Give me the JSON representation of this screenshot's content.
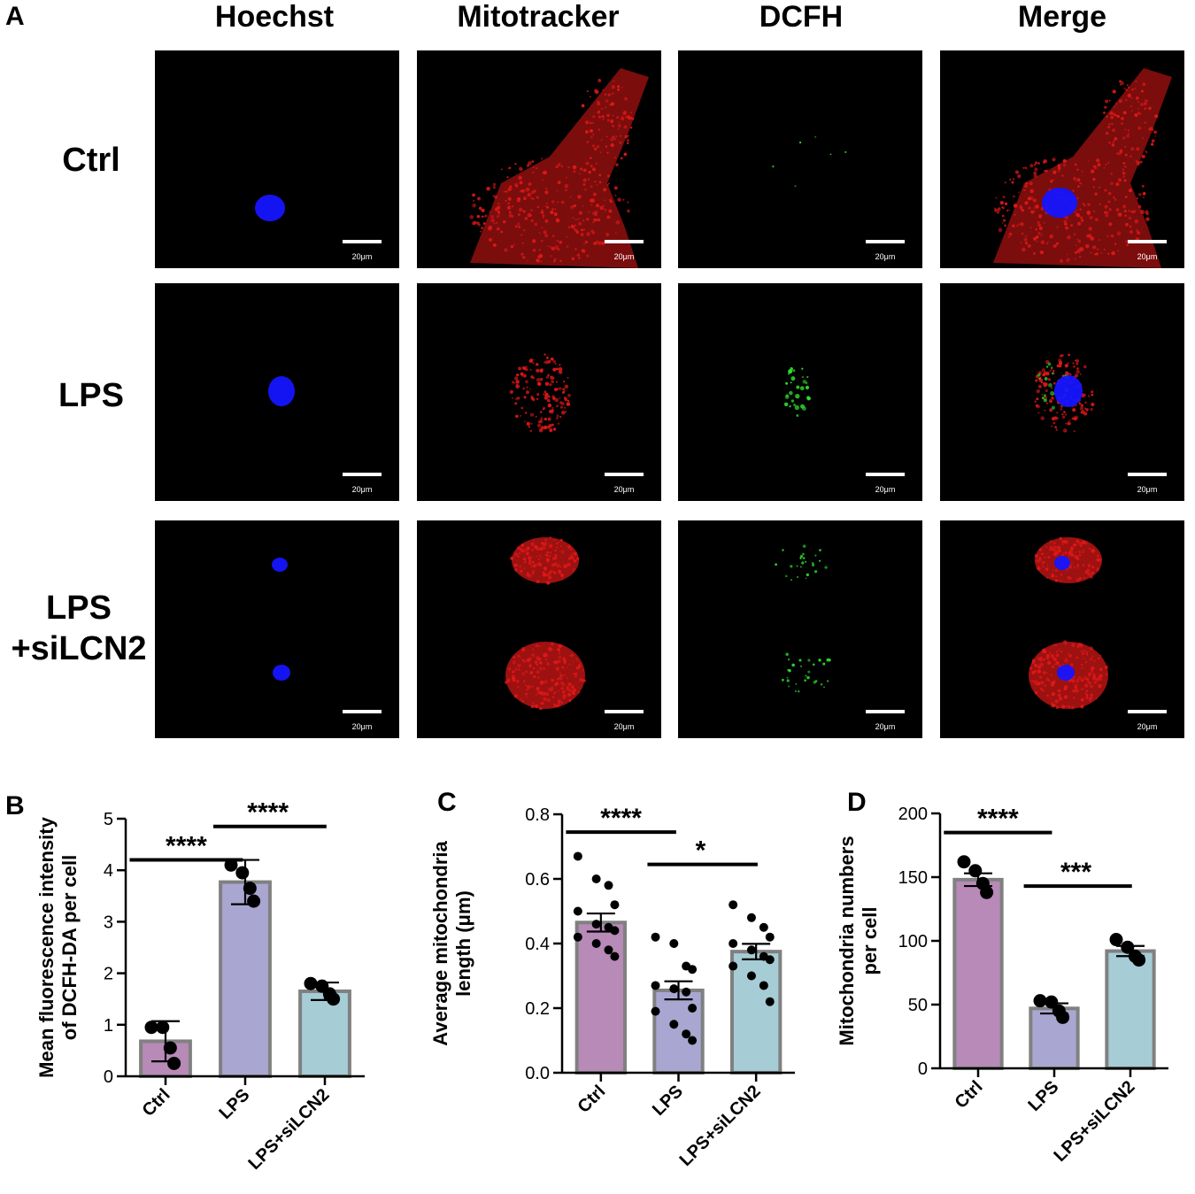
{
  "panel_a": {
    "letter": "A",
    "columns": [
      "Hoechst",
      "Mitotracker",
      "DCFH",
      "Merge"
    ],
    "rows": [
      {
        "label_lines": [
          "Ctrl"
        ],
        "cells": [
          "hoechst",
          "mito",
          "dcfh",
          "merge"
        ]
      },
      {
        "label_lines": [
          "LPS"
        ],
        "cells": [
          "hoechst",
          "mito",
          "dcfh",
          "merge"
        ]
      },
      {
        "label_lines": [
          "LPS",
          "+siLCN2"
        ],
        "cells": [
          "hoechst",
          "mito",
          "dcfh",
          "merge"
        ]
      }
    ],
    "scale_bar_label": "20μm",
    "colors": {
      "nucleus": "#1515ff",
      "mitochondria": "#e01818",
      "ros": "#2ee02e"
    }
  },
  "chart_data": [
    {
      "panel": "B",
      "type": "bar",
      "categories": [
        "Ctrl",
        "LPS",
        "LPS+siLCN2"
      ],
      "values": [
        0.68,
        3.77,
        1.65
      ],
      "errors": [
        0.39,
        0.43,
        0.17
      ],
      "points": [
        [
          0.95,
          0.95,
          0.55,
          0.25
        ],
        [
          4.1,
          3.95,
          3.65,
          3.4
        ],
        [
          1.8,
          1.75,
          1.6,
          1.5
        ]
      ],
      "colors": [
        "#b78ab7",
        "#a9a7d1",
        "#a6ccd6"
      ],
      "ylabel_lines": [
        "Mean fluorescence intensity",
        "of DCFH-DA per cell"
      ],
      "ylim": [
        0,
        5
      ],
      "yticks": [
        "0",
        "1",
        "2",
        "3",
        "4",
        "5"
      ],
      "significance": [
        {
          "from": 0,
          "to": 1,
          "label": "****",
          "y": 4.2
        },
        {
          "from": 1,
          "to": 2,
          "label": "****",
          "y": 4.85
        }
      ]
    },
    {
      "panel": "C",
      "type": "bar",
      "categories": [
        "Ctrl",
        "LPS",
        "LPS+siLCN2"
      ],
      "values": [
        0.465,
        0.255,
        0.375
      ],
      "errors": [
        0.028,
        0.028,
        0.024
      ],
      "points": [
        [
          0.67,
          0.6,
          0.58,
          0.52,
          0.5,
          0.46,
          0.45,
          0.44,
          0.42,
          0.4,
          0.38,
          0.36
        ],
        [
          0.42,
          0.4,
          0.33,
          0.32,
          0.27,
          0.26,
          0.25,
          0.2,
          0.19,
          0.15,
          0.12,
          0.1
        ],
        [
          0.52,
          0.48,
          0.45,
          0.42,
          0.4,
          0.38,
          0.36,
          0.35,
          0.33,
          0.3,
          0.27,
          0.22
        ]
      ],
      "colors": [
        "#b78ab7",
        "#a9a7d1",
        "#a6ccd6"
      ],
      "ylabel_lines": [
        "Average mitochondria",
        "length (μm)"
      ],
      "ylim": [
        0,
        0.8
      ],
      "yticks": [
        "0.0",
        "0.2",
        "0.4",
        "0.6",
        "0.8"
      ],
      "significance": [
        {
          "from": 0,
          "to": 1,
          "label": "****",
          "y": 0.745
        },
        {
          "from": 1,
          "to": 2,
          "label": "*",
          "y": 0.645
        }
      ]
    },
    {
      "panel": "D",
      "type": "bar",
      "categories": [
        "Ctrl",
        "LPS",
        "LPS+siLCN2"
      ],
      "values": [
        148,
        47,
        92
      ],
      "errors": [
        5,
        4,
        4
      ],
      "points": [
        [
          162,
          155,
          145,
          138
        ],
        [
          53,
          52,
          45,
          40
        ],
        [
          101,
          95,
          88,
          85
        ]
      ],
      "colors": [
        "#b78ab7",
        "#a9a7d1",
        "#a6ccd6"
      ],
      "ylabel_lines": [
        "Mitochondria numbers",
        "per cell"
      ],
      "ylim": [
        0,
        200
      ],
      "yticks": [
        "0",
        "50",
        "100",
        "150",
        "200"
      ],
      "significance": [
        {
          "from": 0,
          "to": 1,
          "label": "****",
          "y": 185
        },
        {
          "from": 1,
          "to": 2,
          "label": "***",
          "y": 143
        }
      ]
    }
  ]
}
